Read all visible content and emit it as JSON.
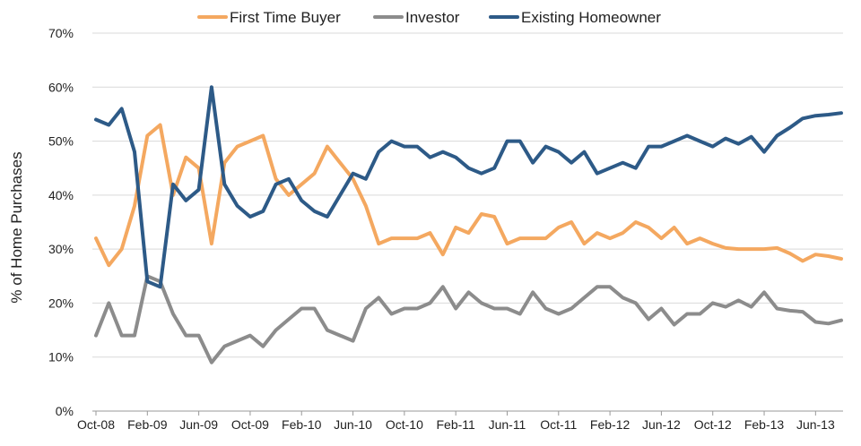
{
  "chart_data": {
    "type": "line",
    "title": "",
    "xlabel": "",
    "ylabel": "% of Home Purchases",
    "ylim": [
      0,
      70
    ],
    "yticks": [
      0,
      10,
      20,
      30,
      40,
      50,
      60,
      70
    ],
    "ytick_labels": [
      "0%",
      "10%",
      "20%",
      "30%",
      "40%",
      "50%",
      "60%",
      "70%"
    ],
    "grid": "horizontal",
    "legend_position": "top-center",
    "x": [
      "Oct-08",
      "Nov-08",
      "Dec-08",
      "Jan-09",
      "Feb-09",
      "Mar-09",
      "Apr-09",
      "May-09",
      "Jun-09",
      "Jul-09",
      "Aug-09",
      "Sep-09",
      "Oct-09",
      "Nov-09",
      "Dec-09",
      "Jan-10",
      "Feb-10",
      "Mar-10",
      "Apr-10",
      "May-10",
      "Jun-10",
      "Jul-10",
      "Aug-10",
      "Sep-10",
      "Oct-10",
      "Nov-10",
      "Dec-10",
      "Jan-11",
      "Feb-11",
      "Mar-11",
      "Apr-11",
      "May-11",
      "Jun-11",
      "Jul-11",
      "Aug-11",
      "Sep-11",
      "Oct-11",
      "Nov-11",
      "Dec-11",
      "Jan-12",
      "Feb-12",
      "Mar-12",
      "Apr-12",
      "May-12",
      "Jun-12",
      "Jul-12",
      "Aug-12",
      "Sep-12",
      "Oct-12",
      "Nov-12",
      "Dec-12",
      "Jan-13",
      "Feb-13",
      "Mar-13",
      "Apr-13",
      "May-13",
      "Jun-13",
      "Jul-13",
      "Aug-13"
    ],
    "xtick_labels": [
      "Oct-08",
      "Feb-09",
      "Jun-09",
      "Oct-09",
      "Feb-10",
      "Jun-10",
      "Oct-10",
      "Feb-11",
      "Jun-11",
      "Oct-11",
      "Feb-12",
      "Jun-12",
      "Oct-12",
      "Feb-13",
      "Jun-13"
    ],
    "series": [
      {
        "name": "First Time Buyer",
        "color": "#f4a860",
        "values": [
          32,
          27,
          30,
          38,
          51,
          53,
          40,
          47,
          45,
          31,
          46,
          49,
          50,
          51,
          43,
          40,
          42,
          44,
          49,
          46,
          43,
          38,
          31,
          32,
          32,
          32,
          33,
          29,
          34,
          33,
          36.5,
          36,
          31,
          32,
          32,
          32,
          34,
          35,
          31,
          33,
          32,
          33,
          35,
          34,
          32,
          34,
          31,
          32,
          31,
          30.2,
          30,
          30,
          30,
          30.2,
          29.2,
          27.8,
          29,
          28.7,
          28.2
        ]
      },
      {
        "name": "Investor",
        "color": "#8c8c8c",
        "values": [
          14,
          20,
          14,
          14,
          25,
          24,
          18,
          14,
          14,
          9,
          12,
          13,
          14,
          12,
          15,
          17,
          19,
          19,
          15,
          14,
          13,
          19,
          21,
          18,
          19,
          19,
          20,
          23,
          19,
          22,
          20,
          19,
          19,
          18,
          22,
          19,
          18,
          19,
          21,
          23,
          23,
          21,
          20,
          17,
          19,
          16,
          18,
          18,
          20,
          19.3,
          20.5,
          19.3,
          22,
          19,
          18.6,
          18.4,
          16.5,
          16.2,
          16.8
        ]
      },
      {
        "name": "Existing Homeowner",
        "color": "#2d5a87",
        "values": [
          54,
          53,
          56,
          48,
          24,
          23,
          42,
          39,
          41,
          60,
          42,
          38,
          36,
          37,
          42,
          43,
          39,
          37,
          36,
          40,
          44,
          43,
          48,
          50,
          49,
          49,
          47,
          48,
          47,
          45,
          44,
          45,
          50,
          50,
          46,
          49,
          48,
          46,
          48,
          44,
          45,
          46,
          45,
          49,
          49,
          50,
          51,
          50,
          49,
          50.5,
          49.5,
          50.8,
          48,
          51,
          52.5,
          54.2,
          54.7,
          54.9,
          55.2
        ]
      }
    ]
  }
}
